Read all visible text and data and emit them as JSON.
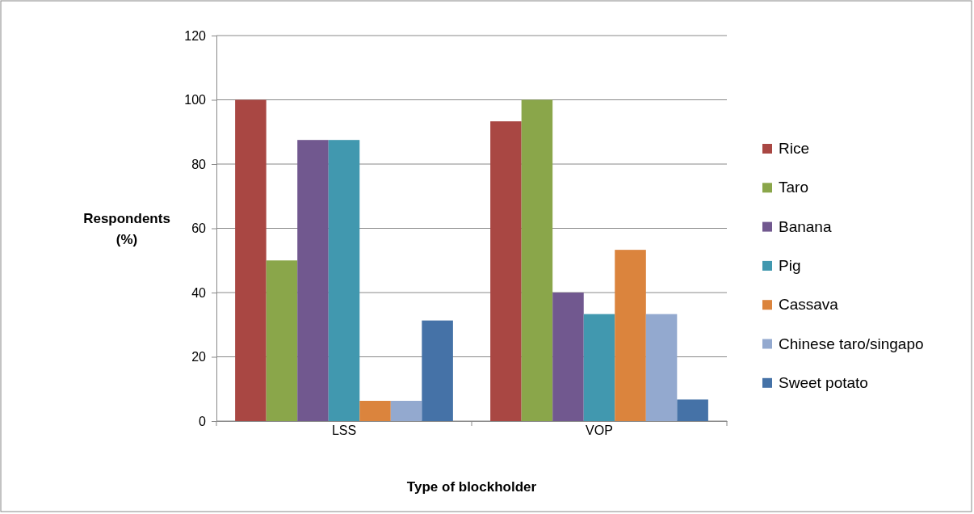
{
  "chart_data": {
    "type": "bar",
    "xlabel": "Type of blockholder",
    "ylabel": "Respondents (%)",
    "categories": [
      "LSS",
      "VOP"
    ],
    "series": [
      {
        "name": "Rice",
        "color": "#a94743",
        "values": [
          100,
          93.3
        ]
      },
      {
        "name": "Taro",
        "color": "#8aa64a",
        "values": [
          50,
          100
        ]
      },
      {
        "name": "Banana",
        "color": "#71588f",
        "values": [
          87.5,
          40
        ]
      },
      {
        "name": "Pig",
        "color": "#4198af",
        "values": [
          87.5,
          33.3
        ]
      },
      {
        "name": "Cassava",
        "color": "#db843d",
        "values": [
          6.3,
          53.3
        ]
      },
      {
        "name": "Chinese taro/singapo",
        "color": "#93a9cf",
        "values": [
          6.3,
          33.3
        ]
      },
      {
        "name": "Sweet potato",
        "color": "#4572a7",
        "values": [
          31.3,
          6.7
        ]
      }
    ],
    "ylim": [
      0,
      120
    ],
    "yticks": [
      0,
      20,
      40,
      60,
      80,
      100,
      120
    ],
    "grid": "y",
    "legend": "right"
  }
}
